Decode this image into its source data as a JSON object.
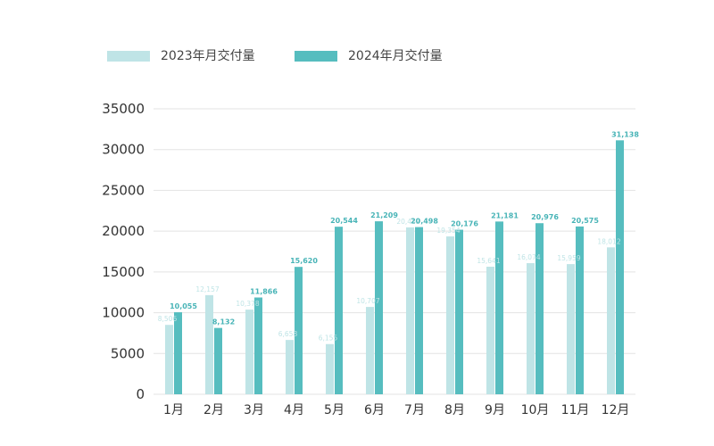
{
  "colors": {
    "series_2023": "#bfe4e6",
    "series_2024": "#56bdbf",
    "label_2024": "#48b4b7",
    "grid": "#e3e3e3"
  },
  "chart_data": {
    "type": "bar",
    "categories": [
      "1月",
      "2月",
      "3月",
      "4月",
      "5月",
      "6月",
      "7月",
      "8月",
      "9月",
      "10月",
      "11月",
      "12月"
    ],
    "series": [
      {
        "name": "2023年月交付量",
        "values": [
          8506,
          12157,
          10378,
          6658,
          6155,
          10707,
          20462,
          19354,
          15641,
          16074,
          15959,
          18012
        ],
        "labels": [
          "8,506",
          "12,157",
          "10,378",
          "6,658",
          "6,155",
          "10,707",
          "20,462",
          "19,354",
          "15,641",
          "16,074",
          "15,959",
          "18,012"
        ]
      },
      {
        "name": "2024年月交付量",
        "values": [
          10055,
          8132,
          11866,
          15620,
          20544,
          21209,
          20498,
          20176,
          21181,
          20976,
          20575,
          31138
        ],
        "labels": [
          "10,055",
          "8,132",
          "11,866",
          "15,620",
          "20,544",
          "21,209",
          "20,498",
          "20,176",
          "21,181",
          "20,976",
          "20,575",
          "31,138"
        ]
      }
    ],
    "yticks": [
      "0",
      "5000",
      "10000",
      "15000",
      "20000",
      "25000",
      "30000",
      "35000"
    ],
    "ylim": [
      0,
      35000
    ],
    "grid": true,
    "legend_position": "top-left"
  }
}
